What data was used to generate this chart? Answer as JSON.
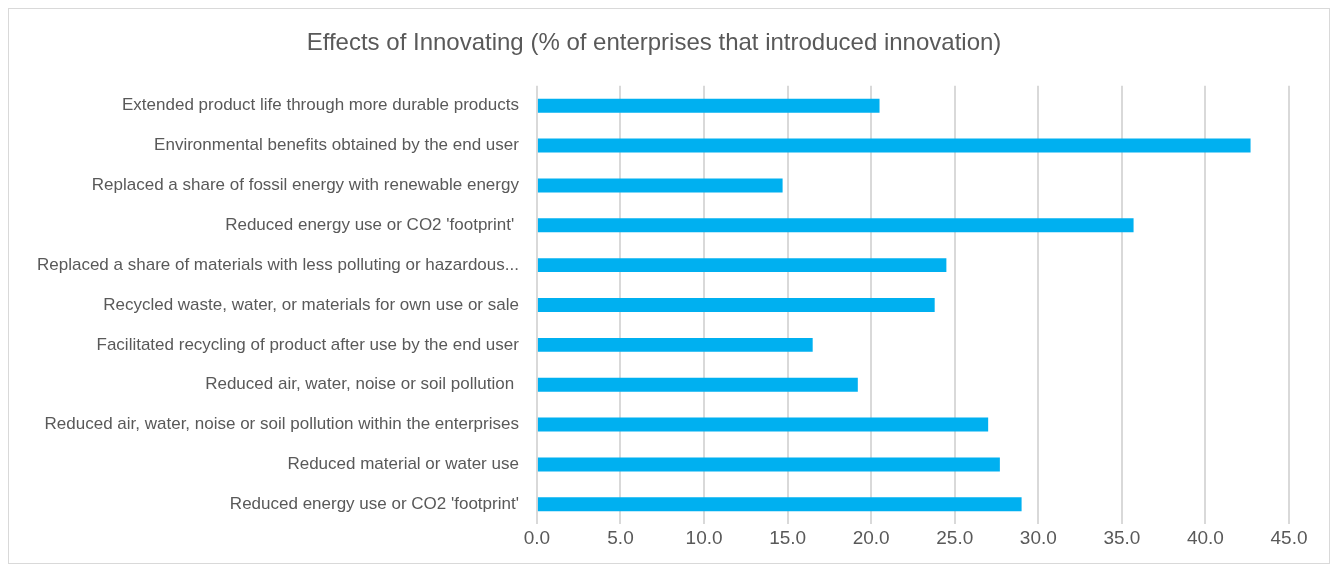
{
  "chart_data": {
    "type": "bar",
    "orientation": "horizontal",
    "title": "Effects of Innovating (% of enterprises that introduced innovation)",
    "categories": [
      "Extended product life through more durable products",
      "Environmental benefits obtained by the end user",
      "Replaced a share of fossil energy with renewable energy",
      "Reduced energy use or CO2 'footprint' ",
      "Replaced a share of materials with less polluting or hazardous...",
      "Recycled waste, water, or materials for own use or sale",
      "Facilitated recycling of product after use by the end user",
      "Reduced air, water, noise or soil pollution ",
      "Reduced air, water, noise or soil pollution within the enterprises",
      "Reduced material or water use",
      "Reduced energy use or CO2 'footprint'"
    ],
    "values": [
      20.5,
      42.7,
      14.7,
      35.7,
      24.5,
      23.8,
      16.5,
      19.2,
      27.0,
      27.7,
      29.0
    ],
    "color": "#00b0f0",
    "xlim": [
      0,
      45
    ],
    "xticks": [
      {
        "value": 0,
        "label": "0.0"
      },
      {
        "value": 5,
        "label": "5.0"
      },
      {
        "value": 10,
        "label": "10.0"
      },
      {
        "value": 15,
        "label": "15.0"
      },
      {
        "value": 20,
        "label": "20.0"
      },
      {
        "value": 25,
        "label": "25.0"
      },
      {
        "value": 30,
        "label": "30.0"
      },
      {
        "value": 35,
        "label": "35.0"
      },
      {
        "value": 40,
        "label": "40.0"
      },
      {
        "value": 45,
        "label": "45.0"
      }
    ],
    "grid": "x"
  }
}
